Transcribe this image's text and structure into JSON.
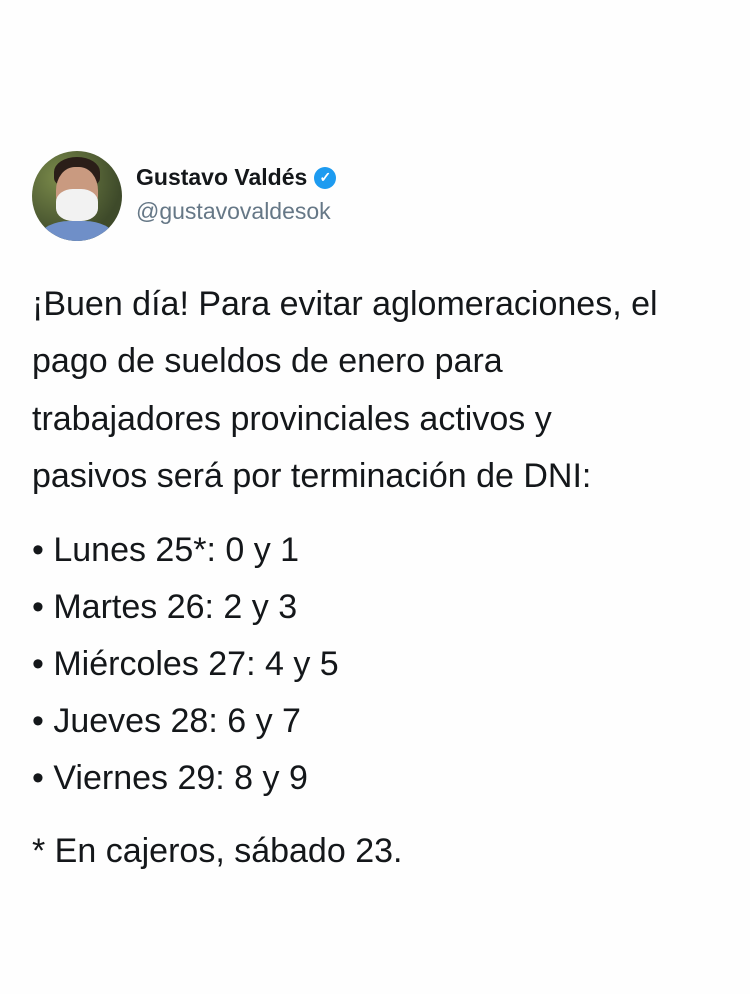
{
  "author": {
    "name": "Gustavo Valdés",
    "handle": "@gustavovaldesok",
    "verified_icon": "verified-badge-icon",
    "verified_color": "#1d9bf0"
  },
  "tweet": {
    "lines": [
      "¡Buen día! Para evitar aglomeraciones, el",
      "pago de sueldos de enero para",
      "trabajadores provinciales activos y",
      "pasivos será por terminación de DNI:"
    ],
    "schedule": [
      "• Lunes 25*: 0 y 1",
      "• Martes 26: 2 y 3",
      "• Miércoles 27: 4 y 5",
      "• Jueves 28: 6 y 7",
      "• Viernes 29: 8 y 9"
    ],
    "footnote": "* En cajeros, sábado 23."
  }
}
